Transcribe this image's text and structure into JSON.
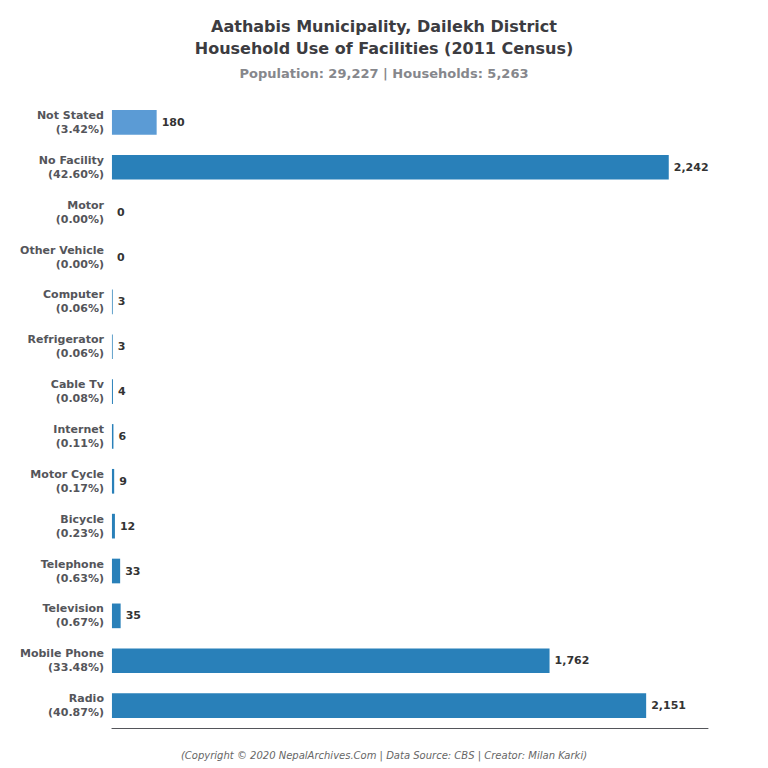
{
  "chart_data": {
    "type": "bar",
    "orientation": "horizontal",
    "title": "Aathabis Municipality, Dailekh District\nHousehold Use of Facilities (2011 Census)",
    "subtitle": "Population: 29,227 | Households: 5,263",
    "annotations": [
      "(Copyright © 2020 NepalArchives.Com | Data Source: CBS | Creator: Milan Karki)"
    ],
    "categories": [
      "Not Stated\n(3.42%)",
      "No Facility\n(42.60%)",
      "Motor\n(0.00%)",
      "Other Vehicle\n(0.00%)",
      "Computer\n(0.06%)",
      "Refrigerator\n(0.06%)",
      "Cable Tv\n(0.08%)",
      "Internet\n(0.11%)",
      "Motor Cycle\n(0.17%)",
      "Bicycle\n(0.23%)",
      "Telephone\n(0.63%)",
      "Television\n(0.67%)",
      "Mobile Phone\n(33.48%)",
      "Radio\n(40.87%)"
    ],
    "values": [
      180,
      2242,
      0,
      0,
      3,
      3,
      4,
      6,
      9,
      12,
      33,
      35,
      1762,
      2151
    ],
    "value_labels": [
      "180",
      "2,242",
      "0",
      "0",
      "3",
      "3",
      "4",
      "6",
      "9",
      "12",
      "33",
      "35",
      "1,762",
      "2,151"
    ],
    "data_labels": true,
    "colors": [
      "#5b9bd5",
      "#2980b9",
      "#2980b9",
      "#2980b9",
      "#2980b9",
      "#2980b9",
      "#2980b9",
      "#2980b9",
      "#2980b9",
      "#2980b9",
      "#2980b9",
      "#2980b9",
      "#2980b9",
      "#2980b9"
    ],
    "xlim": [
      0,
      2400
    ],
    "tick_labels": "y",
    "grid": false
  }
}
